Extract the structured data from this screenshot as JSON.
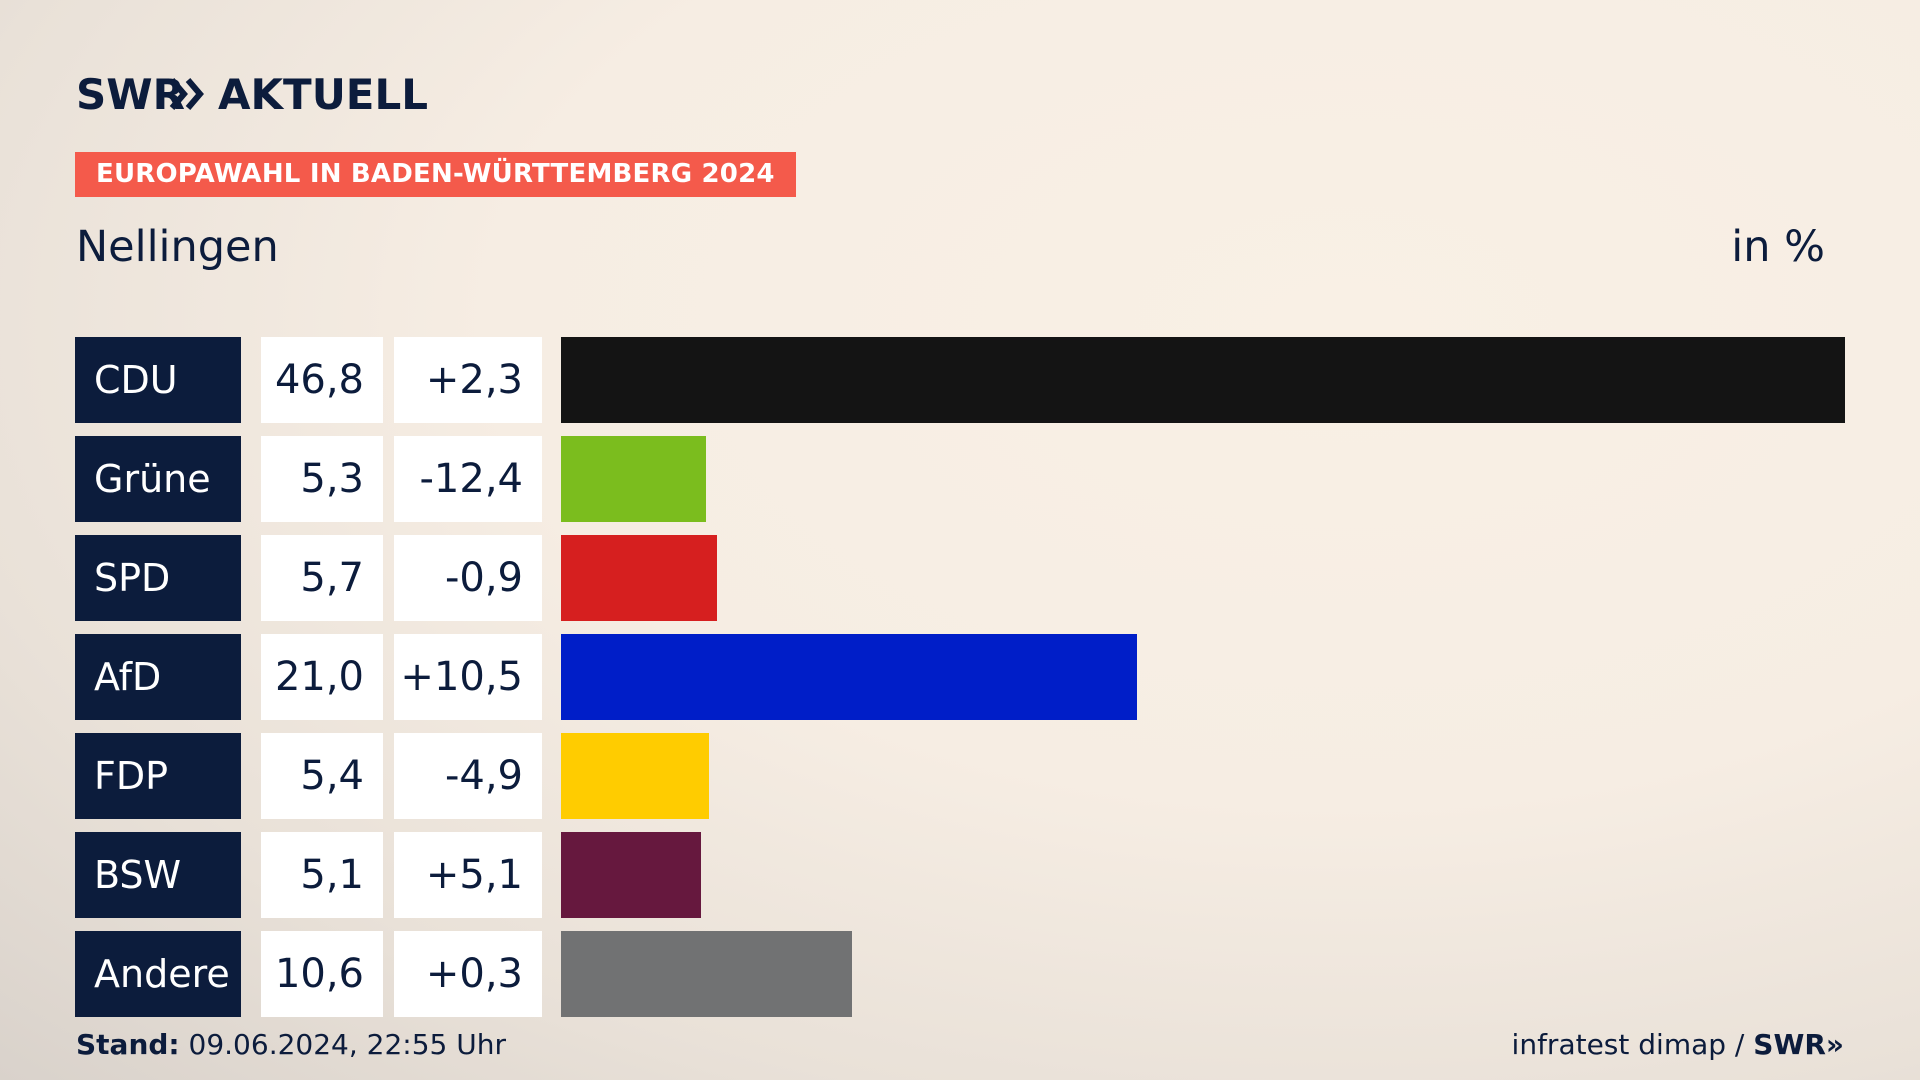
{
  "brand": {
    "logo_text": "SWR",
    "logo_suffix": "AKTUELL",
    "accent_color": "#f45a4b",
    "dark_color": "#0c1c3c"
  },
  "header": {
    "ribbon": "EUROPAWAHL IN BADEN-WÜRTTEMBERG 2024",
    "location": "Nellingen",
    "unit": "in %"
  },
  "chart_data": {
    "type": "bar",
    "orientation": "horizontal",
    "categories": [
      "CDU",
      "Grüne",
      "SPD",
      "AfD",
      "FDP",
      "BSW",
      "Andere"
    ],
    "values": [
      46.8,
      5.3,
      5.7,
      21.0,
      5.4,
      5.1,
      10.6
    ],
    "value_labels": [
      "46,8",
      "5,3",
      "5,7",
      "21,0",
      "5,4",
      "5,1",
      "10,6"
    ],
    "change_labels": [
      "+2,3",
      "-12,4",
      "-0,9",
      "+10,5",
      "-4,9",
      "+5,1",
      "+0,3"
    ],
    "colors": [
      "#141414",
      "#7bbd1e",
      "#d61f1f",
      "#001ec8",
      "#ffcc00",
      "#66183e",
      "#717273"
    ],
    "unit": "in %",
    "grid": false,
    "legend": "none"
  },
  "footer": {
    "stand_label": "Stand:",
    "stand_value": "09.06.2024, 22:55 Uhr",
    "source": "infratest dimap /",
    "source_brand": "SWR"
  }
}
